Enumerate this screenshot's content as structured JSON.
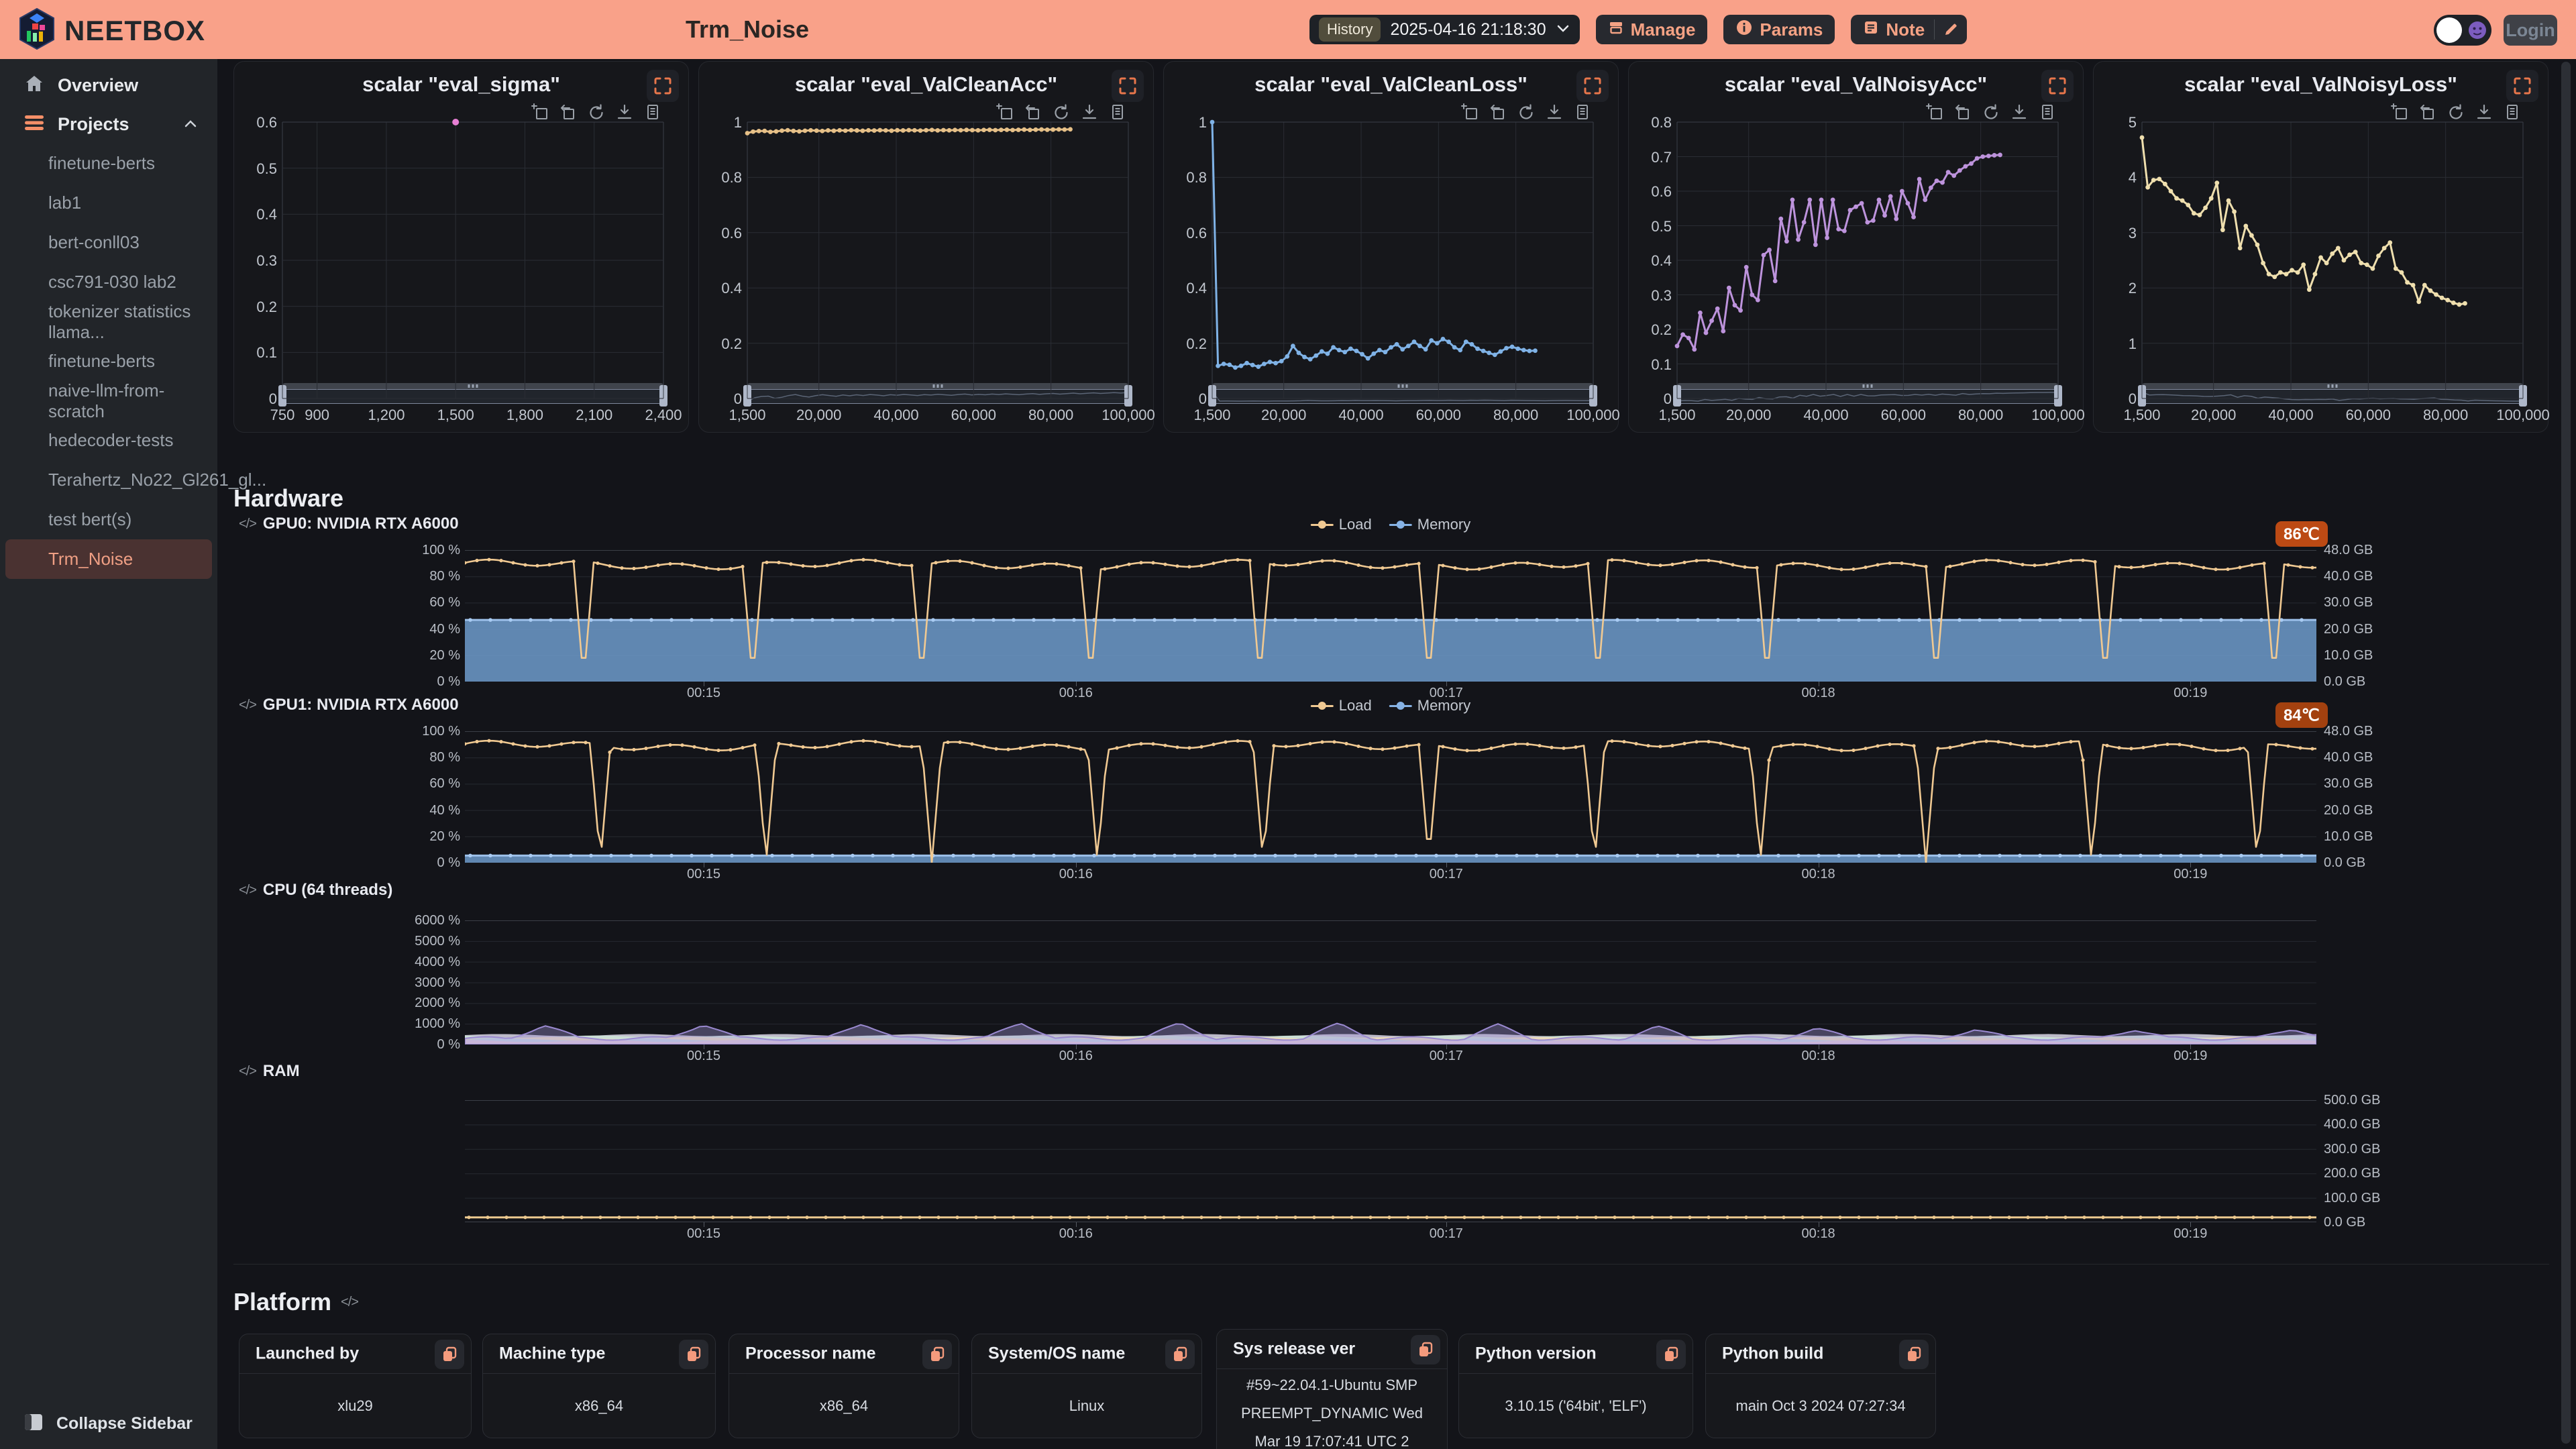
{
  "header": {
    "brand": "NEETBOX",
    "title": "Trm_Noise",
    "history_label": "History",
    "history_value": "2025-04-16 21:18:30",
    "manage": "Manage",
    "params": "Params",
    "note": "Note",
    "login": "Login"
  },
  "sidebar": {
    "overview": "Overview",
    "projects": "Projects",
    "items": [
      {
        "label": "finetune-berts"
      },
      {
        "label": "lab1"
      },
      {
        "label": "bert-conll03"
      },
      {
        "label": "csc791-030 lab2"
      },
      {
        "label": "tokenizer statistics llama..."
      },
      {
        "label": "finetune-berts"
      },
      {
        "label": "naive-llm-from-scratch"
      },
      {
        "label": "hedecoder-tests"
      },
      {
        "label": "Terahertz_No22_Gl261_gl..."
      },
      {
        "label": "test bert(s)"
      },
      {
        "label": "Trm_Noise",
        "selected": true
      }
    ],
    "collapse": "Collapse Sidebar"
  },
  "sections": {
    "hardware": "Hardware",
    "platform": "Platform"
  },
  "chart_data": {
    "scalars": [
      {
        "type": "scatter",
        "title": "scalar \"eval_sigma\"",
        "color": "#e77fd4",
        "x_range": [
          750,
          2400
        ],
        "x_ticks": [
          {
            "v": 750,
            "label": "750"
          },
          {
            "v": 900,
            "label": "900"
          },
          {
            "v": 1200,
            "label": "1,200"
          },
          {
            "v": 1500,
            "label": "1,500"
          },
          {
            "v": 1800,
            "label": "1,800"
          },
          {
            "v": 2100,
            "label": "2,100"
          },
          {
            "v": 2400,
            "label": "2,400"
          }
        ],
        "y_range": [
          0,
          0.6
        ],
        "y_ticks": [
          "0.6",
          "0.5",
          "0.4",
          "0.3",
          "0.2",
          "0.1",
          "0"
        ],
        "points": [
          [
            1500,
            0.6
          ]
        ]
      },
      {
        "type": "line",
        "title": "scalar \"eval_ValCleanAcc\"",
        "color": "#e6c088",
        "x_range": [
          1500,
          100000
        ],
        "x_ticks": [
          {
            "v": 1500,
            "label": "1,500"
          },
          {
            "v": 20000,
            "label": "20,000"
          },
          {
            "v": 40000,
            "label": "40,000"
          },
          {
            "v": 60000,
            "label": "60,000"
          },
          {
            "v": 80000,
            "label": "80,000"
          },
          {
            "v": 100000,
            "label": "100,000"
          }
        ],
        "y_range": [
          0,
          1
        ],
        "y_ticks": [
          "1",
          "0.8",
          "0.6",
          "0.4",
          "0.2",
          "0"
        ],
        "x_start": 1500,
        "x_end": 85000,
        "values": [
          0.96,
          0.9655,
          0.9675,
          0.968,
          0.9645,
          0.9662,
          0.969,
          0.9706,
          0.968,
          0.9665,
          0.9688,
          0.9703,
          0.969,
          0.9678,
          0.9699,
          0.9686,
          0.9702,
          0.969,
          0.9706,
          0.9698,
          0.9686,
          0.9703,
          0.9695,
          0.9707,
          0.9699,
          0.9689,
          0.9704,
          0.9698,
          0.9709,
          0.9702,
          0.9693,
          0.9705,
          0.9714,
          0.9699,
          0.9708,
          0.9702,
          0.9713,
          0.9706,
          0.9716,
          0.9709,
          0.9703,
          0.9714,
          0.972,
          0.9708,
          0.9717,
          0.9723,
          0.9712,
          0.972,
          0.9728,
          0.9717,
          0.9725,
          0.9732,
          0.9723,
          0.9729,
          0.9736,
          0.973,
          0.9739
        ]
      },
      {
        "type": "line",
        "title": "scalar \"eval_ValCleanLoss\"",
        "color": "#7fb2e6",
        "x_range": [
          1500,
          100000
        ],
        "x_ticks": [
          {
            "v": 1500,
            "label": "1,500"
          },
          {
            "v": 20000,
            "label": "20,000"
          },
          {
            "v": 40000,
            "label": "40,000"
          },
          {
            "v": 60000,
            "label": "60,000"
          },
          {
            "v": 80000,
            "label": "80,000"
          },
          {
            "v": 100000,
            "label": "100,000"
          }
        ],
        "y_range": [
          0,
          1
        ],
        "y_ticks": [
          "1",
          "0.8",
          "0.6",
          "0.4",
          "0.2",
          "0"
        ],
        "x_start": 1500,
        "x_end": 85000,
        "values": [
          1.0,
          0.118,
          0.125,
          0.122,
          0.112,
          0.118,
          0.128,
          0.121,
          0.115,
          0.125,
          0.132,
          0.128,
          0.135,
          0.152,
          0.19,
          0.165,
          0.15,
          0.142,
          0.155,
          0.17,
          0.162,
          0.185,
          0.175,
          0.168,
          0.18,
          0.172,
          0.16,
          0.145,
          0.162,
          0.175,
          0.168,
          0.185,
          0.196,
          0.178,
          0.19,
          0.205,
          0.19,
          0.178,
          0.21,
          0.2,
          0.215,
          0.205,
          0.185,
          0.175,
          0.205,
          0.196,
          0.18,
          0.172,
          0.165,
          0.158,
          0.17,
          0.182,
          0.187,
          0.18,
          0.175,
          0.172,
          0.173
        ]
      },
      {
        "type": "line",
        "title": "scalar \"eval_ValNoisyAcc\"",
        "color": "#bd93dc",
        "x_range": [
          1500,
          100000
        ],
        "x_ticks": [
          {
            "v": 1500,
            "label": "1,500"
          },
          {
            "v": 20000,
            "label": "20,000"
          },
          {
            "v": 40000,
            "label": "40,000"
          },
          {
            "v": 60000,
            "label": "60,000"
          },
          {
            "v": 80000,
            "label": "80,000"
          },
          {
            "v": 100000,
            "label": "100,000"
          }
        ],
        "y_range": [
          0,
          0.8
        ],
        "y_ticks": [
          "0.8",
          "0.7",
          "0.6",
          "0.5",
          "0.4",
          "0.3",
          "0.2",
          "0.1",
          "0"
        ],
        "x_start": 1500,
        "x_end": 85000,
        "values": [
          0.152,
          0.185,
          0.175,
          0.142,
          0.248,
          0.19,
          0.225,
          0.26,
          0.195,
          0.32,
          0.27,
          0.255,
          0.38,
          0.3,
          0.285,
          0.415,
          0.43,
          0.34,
          0.52,
          0.455,
          0.575,
          0.46,
          0.51,
          0.575,
          0.445,
          0.575,
          0.465,
          0.575,
          0.49,
          0.485,
          0.545,
          0.555,
          0.565,
          0.51,
          0.515,
          0.575,
          0.53,
          0.585,
          0.52,
          0.6,
          0.565,
          0.525,
          0.635,
          0.575,
          0.61,
          0.63,
          0.625,
          0.655,
          0.645,
          0.66,
          0.672,
          0.68,
          0.695,
          0.7,
          0.702,
          0.704,
          0.705
        ]
      },
      {
        "type": "line",
        "title": "scalar \"eval_ValNoisyLoss\"",
        "color": "#efdfae",
        "x_range": [
          1500,
          100000
        ],
        "x_ticks": [
          {
            "v": 1500,
            "label": "1,500"
          },
          {
            "v": 20000,
            "label": "20,000"
          },
          {
            "v": 40000,
            "label": "40,000"
          },
          {
            "v": 60000,
            "label": "60,000"
          },
          {
            "v": 80000,
            "label": "80,000"
          },
          {
            "v": 100000,
            "label": "100,000"
          }
        ],
        "y_range": [
          0,
          5
        ],
        "y_ticks": [
          "5",
          "4",
          "3",
          "2",
          "1",
          "0"
        ],
        "x_start": 1500,
        "x_end": 85000,
        "values": [
          4.72,
          3.82,
          3.95,
          3.97,
          3.88,
          3.75,
          3.62,
          3.58,
          3.5,
          3.35,
          3.32,
          3.45,
          3.62,
          3.9,
          3.05,
          3.58,
          3.38,
          2.72,
          3.12,
          2.95,
          2.78,
          2.45,
          2.25,
          2.2,
          2.28,
          2.25,
          2.32,
          2.28,
          2.42,
          1.97,
          2.25,
          2.55,
          2.45,
          2.62,
          2.72,
          2.5,
          2.6,
          2.65,
          2.45,
          2.42,
          2.35,
          2.58,
          2.72,
          2.82,
          2.35,
          2.28,
          2.1,
          2.05,
          1.75,
          2.05,
          1.95,
          1.88,
          1.82,
          1.78,
          1.73,
          1.7,
          1.72
        ]
      }
    ],
    "legend": [
      {
        "label": "Load",
        "color": "#f0c992"
      },
      {
        "label": "Memory",
        "color": "#86b2e4"
      }
    ],
    "time_labels": [
      "00:15",
      "00:16",
      "00:17",
      "00:18",
      "00:19"
    ],
    "hardware": [
      {
        "id": "gpu0",
        "kind": "gpu",
        "label": "GPU0: NVIDIA RTX A6000",
        "temp": "86℃",
        "temp_color": "#bc4a14",
        "load_high_pct": 90,
        "memory_gb": 22.5,
        "memory_max_gb": 48,
        "left_ticks": [
          "100 %",
          "80 %",
          "60 %",
          "40 %",
          "20 %",
          "0 %"
        ],
        "right_ticks": [
          "48.0 GB",
          "40.0 GB",
          "30.0 GB",
          "20.0 GB",
          "10.0 GB",
          "0.0 GB"
        ]
      },
      {
        "id": "gpu1",
        "kind": "gpu",
        "label": "GPU1: NVIDIA RTX A6000",
        "temp": "84℃",
        "temp_color": "#a3410f",
        "load_high_pct": 90,
        "memory_gb": 2.6,
        "memory_max_gb": 48,
        "left_ticks": [
          "100 %",
          "80 %",
          "60 %",
          "40 %",
          "20 %",
          "0 %"
        ],
        "right_ticks": [
          "48.0 GB",
          "40.0 GB",
          "30.0 GB",
          "20.0 GB",
          "10.0 GB",
          "0.0 GB"
        ]
      },
      {
        "id": "cpu",
        "kind": "cpu",
        "label": "CPU (64 threads)",
        "left_ticks": [
          "6000 %",
          "5000 %",
          "4000 %",
          "3000 %",
          "2000 %",
          "1000 %",
          "0 %"
        ],
        "baseline_pct": 200,
        "peak_pct": 800,
        "y_max_pct": 6000
      },
      {
        "id": "ram",
        "kind": "ram",
        "label": "RAM",
        "right_ticks": [
          "500.0 GB",
          "400.0 GB",
          "300.0 GB",
          "200.0 GB",
          "100.0 GB",
          "0.0 GB"
        ],
        "used_gb": 20,
        "capacity_gb": 500,
        "color": "#ecc98f"
      }
    ]
  },
  "platform": {
    "heading": "Platform",
    "cards": [
      {
        "title": "Launched by",
        "value": "xlu29"
      },
      {
        "title": "Machine type",
        "value": "x86_64"
      },
      {
        "title": "Processor name",
        "value": "x86_64"
      },
      {
        "title": "System/OS name",
        "value": "Linux"
      },
      {
        "title": "Sys release ver",
        "value": "#59~22.04.1-Ubuntu SMP PREEMPT_DYNAMIC Wed Mar 19 17:07:41 UTC 2"
      },
      {
        "title": "Python version",
        "value": "3.10.15 ('64bit', 'ELF')"
      },
      {
        "title": "Python build",
        "value": "main Oct 3 2024 07:27:34"
      }
    ]
  }
}
